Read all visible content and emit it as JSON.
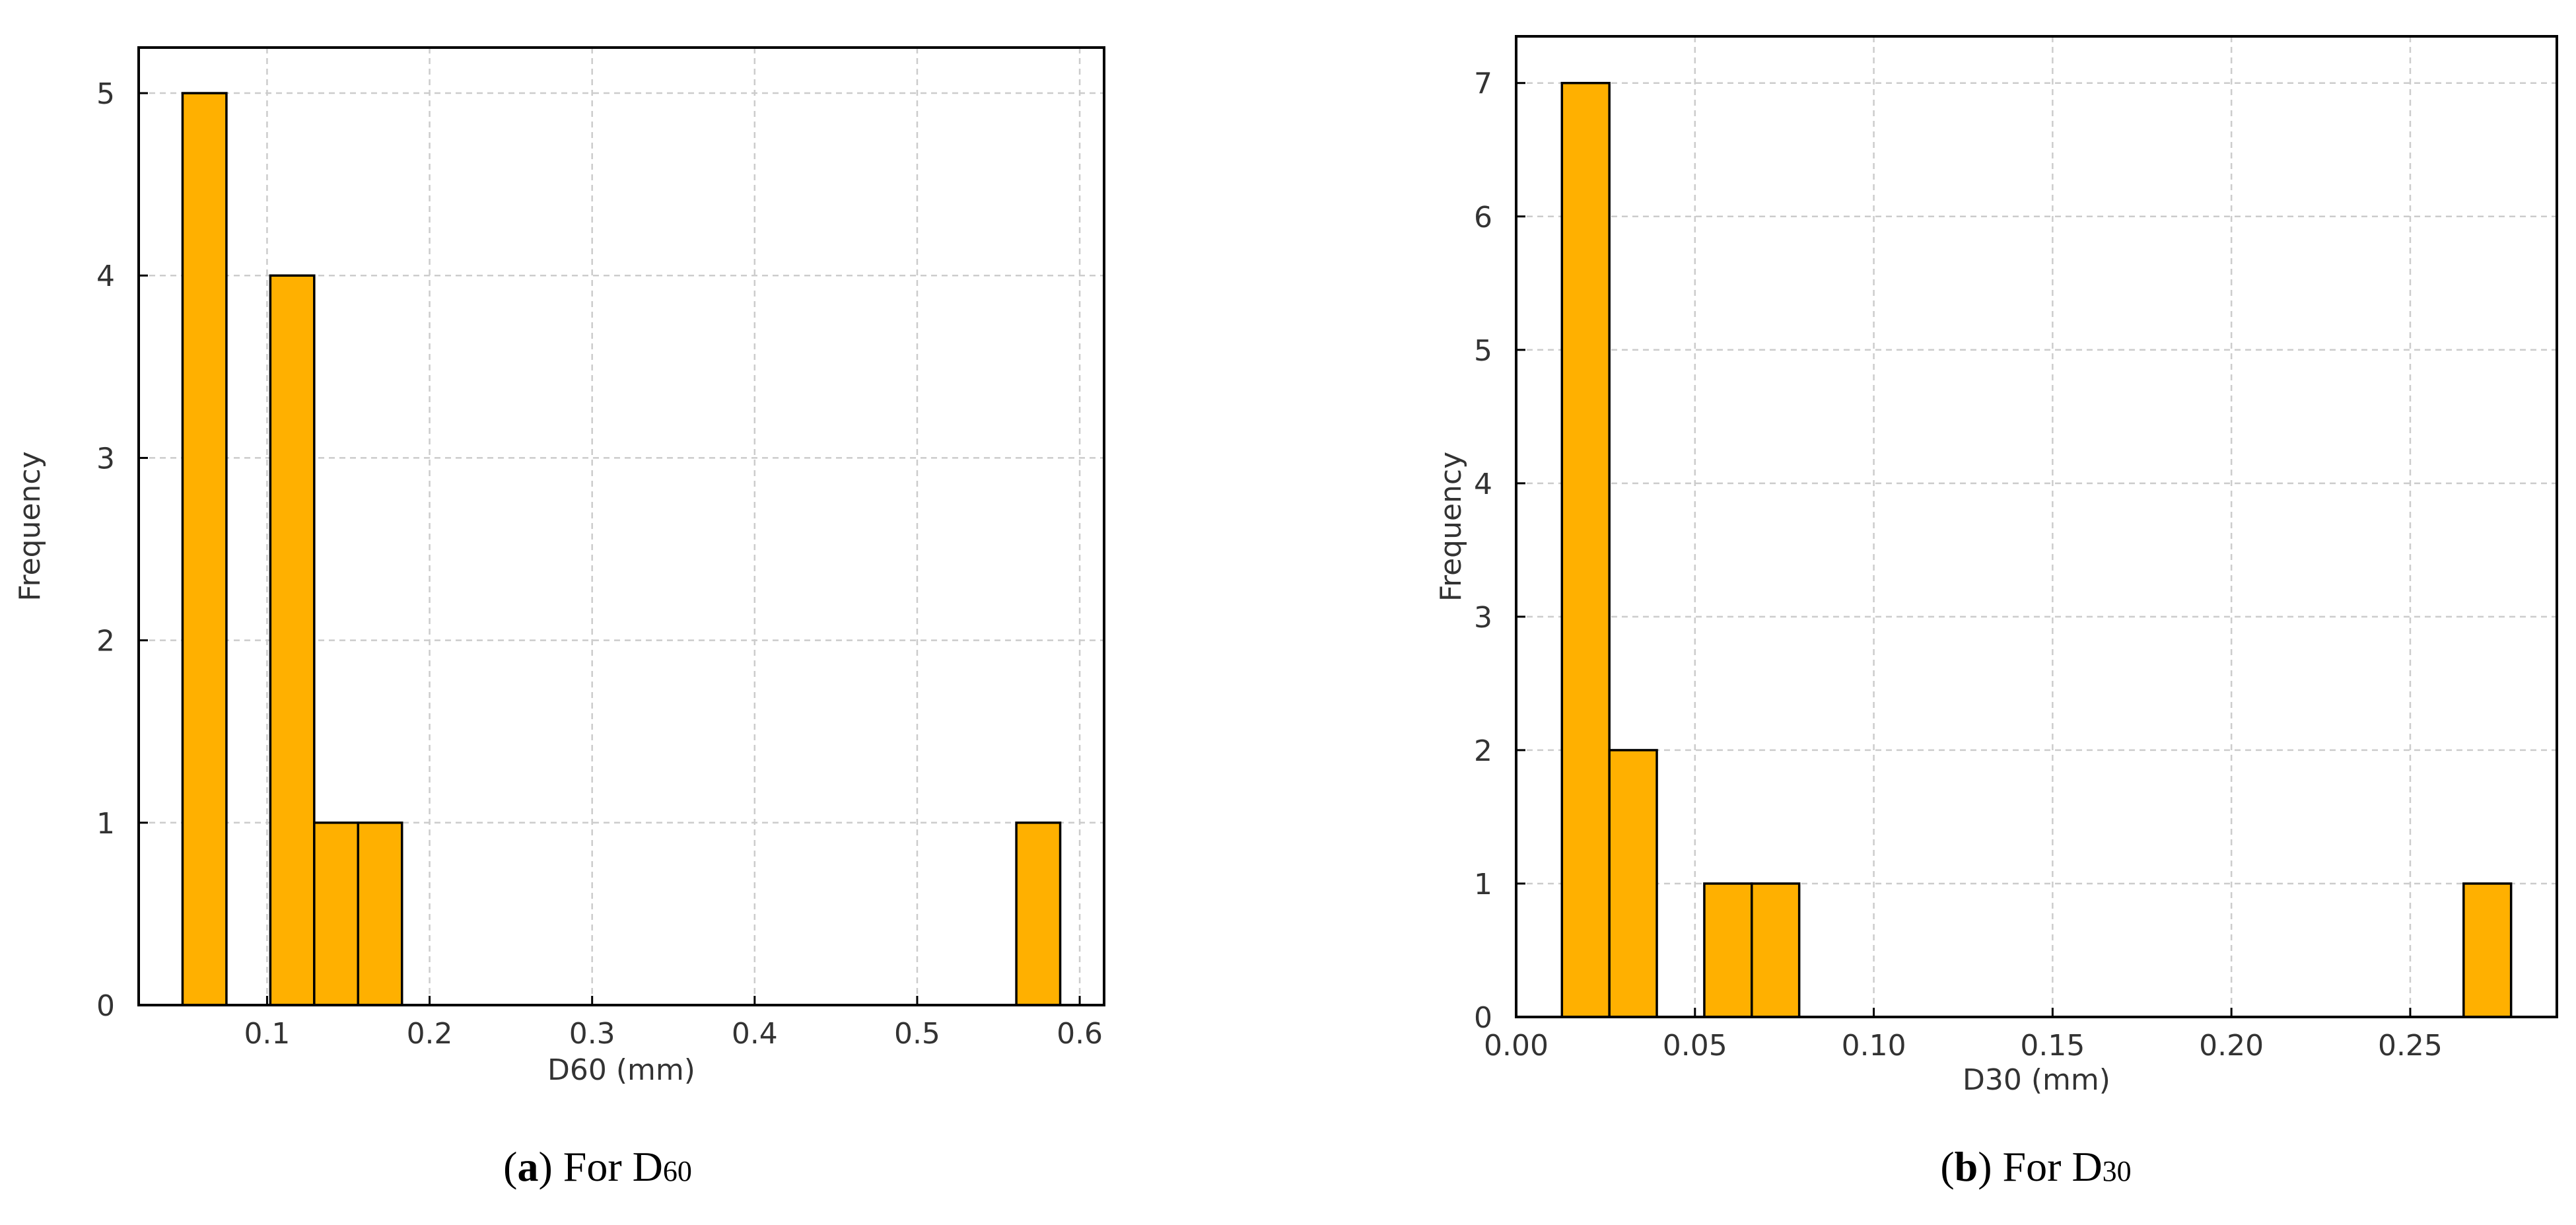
{
  "chart_data": [
    {
      "type": "bar",
      "panel": "a",
      "bin_edges": [
        0.048,
        0.075,
        0.102,
        0.129,
        0.156,
        0.183,
        0.21,
        0.237,
        0.264,
        0.291,
        0.318,
        0.345,
        0.372,
        0.399,
        0.426,
        0.453,
        0.48,
        0.507,
        0.534,
        0.561,
        0.588
      ],
      "values": [
        5,
        0,
        4,
        1,
        1,
        0,
        0,
        0,
        0,
        0,
        0,
        0,
        0,
        0,
        0,
        0,
        0,
        0,
        0,
        1
      ],
      "xlabel": "D60 (mm)",
      "ylabel": "Frequency",
      "xlim": [
        0.021,
        0.615
      ],
      "ylim": [
        0,
        5.25
      ],
      "xticks": [
        0.1,
        0.2,
        0.3,
        0.4,
        0.5,
        0.6
      ],
      "xtick_labels": [
        "0.1",
        "0.2",
        "0.3",
        "0.4",
        "0.5",
        "0.6"
      ],
      "yticks": [
        0,
        1,
        2,
        3,
        4,
        5
      ],
      "ytick_labels": [
        "0",
        "1",
        "2",
        "3",
        "4",
        "5"
      ],
      "grid": true,
      "bar_color": "#FFB000",
      "edge_color": "#000000",
      "caption": {
        "letter": "a",
        "text": " For D",
        "subscript": "60"
      }
    },
    {
      "type": "bar",
      "panel": "b",
      "bin_edges": [
        0.0128,
        0.02607,
        0.03934,
        0.05261,
        0.06588,
        0.07915,
        0.09242,
        0.10569,
        0.11896,
        0.13223,
        0.1455,
        0.15877,
        0.17204,
        0.18531,
        0.19858,
        0.21185,
        0.22512,
        0.23839,
        0.25166,
        0.26493,
        0.2782
      ],
      "values": [
        7,
        2,
        0,
        1,
        1,
        0,
        0,
        0,
        0,
        0,
        0,
        0,
        0,
        0,
        0,
        0,
        0,
        0,
        0,
        1
      ],
      "xlabel": "D30 (mm)",
      "ylabel": "Frequency",
      "xlim": [
        0,
        0.291
      ],
      "ylim": [
        0,
        7.35
      ],
      "xticks": [
        0,
        0.05,
        0.1,
        0.15,
        0.2,
        0.25
      ],
      "xtick_labels": [
        "0.00",
        "0.05",
        "0.10",
        "0.15",
        "0.20",
        "0.25"
      ],
      "yticks": [
        0,
        1,
        2,
        3,
        4,
        5,
        6,
        7
      ],
      "ytick_labels": [
        "0",
        "1",
        "2",
        "3",
        "4",
        "5",
        "6",
        "7"
      ],
      "grid": true,
      "bar_color": "#FFB000",
      "edge_color": "#000000",
      "caption": {
        "letter": "b",
        "text": " For D",
        "subscript": "30"
      }
    }
  ]
}
